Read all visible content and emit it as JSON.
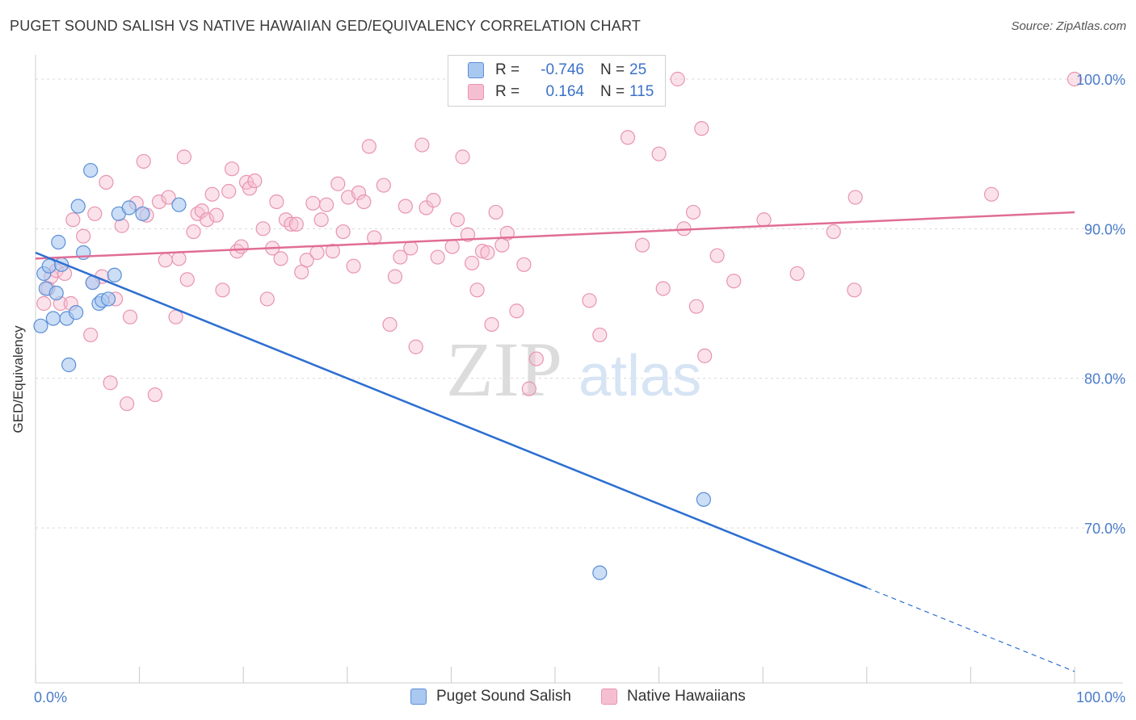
{
  "header": {
    "title": "PUGET SOUND SALISH VS NATIVE HAWAIIAN GED/EQUIVALENCY CORRELATION CHART",
    "source": "Source: ZipAtlas.com"
  },
  "watermark": {
    "zip": "ZIP",
    "atlas": "atlas"
  },
  "legend": {
    "rows": [
      {
        "r_label": "R =",
        "r_value": "-0.746",
        "n_label": "N =",
        "n_value": "25"
      },
      {
        "r_label": "R =",
        "r_value": "0.164",
        "n_label": "N =",
        "n_value": "115"
      }
    ]
  },
  "bottom_legend": {
    "series1": "Puget Sound Salish",
    "series2": "Native Hawaiians"
  },
  "chart_data": {
    "type": "scatter",
    "title": "PUGET SOUND SALISH VS NATIVE HAWAIIAN GED/EQUIVALENCY CORRELATION CHART",
    "xlabel": "",
    "ylabel": "GED/Equivalency",
    "xlim": [
      0,
      100
    ],
    "ylim": [
      60,
      103
    ],
    "x_tick_labels": [
      "0.0%",
      "100.0%"
    ],
    "y_ticks": [
      {
        "value": 100,
        "label": "100.0%"
      },
      {
        "value": 90,
        "label": "90.0%"
      },
      {
        "value": 80,
        "label": "80.0%"
      },
      {
        "value": 70,
        "label": "70.0%"
      }
    ],
    "colors": {
      "blue_fill": "#a9c8f0",
      "blue_stroke": "#5b8fd6",
      "blue_line": "#2d6fd0",
      "pink_fill": "#f6bfd1",
      "pink_stroke": "#e894b1",
      "pink_line": "#e06d96",
      "axis_text": "#4a7cc9",
      "grid": "#d8d8d8"
    },
    "series": [
      {
        "name": "Puget Sound Salish",
        "r": -0.746,
        "n": 25,
        "trend": {
          "x0": 0,
          "y0": 88.4,
          "x1": 80,
          "y1": 66.0,
          "dash_to_x": 100,
          "dash_to_y": 60.4
        },
        "points": [
          [
            0.5,
            83.5
          ],
          [
            0.8,
            87.0
          ],
          [
            1.0,
            86.0
          ],
          [
            1.3,
            87.5
          ],
          [
            1.7,
            84.0
          ],
          [
            2.0,
            85.7
          ],
          [
            2.2,
            89.1
          ],
          [
            2.5,
            87.6
          ],
          [
            3.0,
            84.0
          ],
          [
            3.2,
            80.9
          ],
          [
            3.9,
            84.4
          ],
          [
            4.1,
            91.5
          ],
          [
            4.6,
            88.4
          ],
          [
            5.3,
            93.9
          ],
          [
            5.5,
            86.4
          ],
          [
            6.1,
            85.0
          ],
          [
            6.4,
            85.2
          ],
          [
            7.0,
            85.3
          ],
          [
            7.6,
            86.9
          ],
          [
            8.0,
            91.0
          ],
          [
            9.0,
            91.4
          ],
          [
            10.3,
            91.0
          ],
          [
            13.8,
            91.6
          ],
          [
            54.3,
            67.0
          ],
          [
            64.3,
            71.9
          ]
        ]
      },
      {
        "name": "Native Hawaiians",
        "r": 0.164,
        "n": 115,
        "trend": {
          "x0": 0,
          "y0": 88.0,
          "x1": 100,
          "y1": 91.1
        },
        "points": [
          [
            0.8,
            85.0
          ],
          [
            1.2,
            86.0
          ],
          [
            1.5,
            86.8
          ],
          [
            2.0,
            87.2
          ],
          [
            2.4,
            85.0
          ],
          [
            2.8,
            87.0
          ],
          [
            3.4,
            85.0
          ],
          [
            3.6,
            90.6
          ],
          [
            4.6,
            89.5
          ],
          [
            5.3,
            82.9
          ],
          [
            5.5,
            86.4
          ],
          [
            5.7,
            91.0
          ],
          [
            6.4,
            86.8
          ],
          [
            6.8,
            93.1
          ],
          [
            7.2,
            79.7
          ],
          [
            7.7,
            85.3
          ],
          [
            8.3,
            90.2
          ],
          [
            8.8,
            78.3
          ],
          [
            9.1,
            84.1
          ],
          [
            9.7,
            91.7
          ],
          [
            10.4,
            94.5
          ],
          [
            10.7,
            90.9
          ],
          [
            11.5,
            78.9
          ],
          [
            11.9,
            91.8
          ],
          [
            12.5,
            87.9
          ],
          [
            12.8,
            92.1
          ],
          [
            13.5,
            84.1
          ],
          [
            13.8,
            88.0
          ],
          [
            14.3,
            94.8
          ],
          [
            14.6,
            86.6
          ],
          [
            15.2,
            89.8
          ],
          [
            15.6,
            91.0
          ],
          [
            16.0,
            91.2
          ],
          [
            16.5,
            90.6
          ],
          [
            17.0,
            92.3
          ],
          [
            17.4,
            90.9
          ],
          [
            18.0,
            85.9
          ],
          [
            18.6,
            92.5
          ],
          [
            18.9,
            94.0
          ],
          [
            19.4,
            88.5
          ],
          [
            19.8,
            88.8
          ],
          [
            20.3,
            93.1
          ],
          [
            20.6,
            92.7
          ],
          [
            21.1,
            93.2
          ],
          [
            21.9,
            90.0
          ],
          [
            22.3,
            85.3
          ],
          [
            22.8,
            88.7
          ],
          [
            23.2,
            91.8
          ],
          [
            23.6,
            88.0
          ],
          [
            24.1,
            90.6
          ],
          [
            24.6,
            90.3
          ],
          [
            25.1,
            90.3
          ],
          [
            25.6,
            87.1
          ],
          [
            26.1,
            87.9
          ],
          [
            26.7,
            91.7
          ],
          [
            27.1,
            88.4
          ],
          [
            27.5,
            90.6
          ],
          [
            28.0,
            91.6
          ],
          [
            28.6,
            88.5
          ],
          [
            29.1,
            93.0
          ],
          [
            29.6,
            89.8
          ],
          [
            30.1,
            92.1
          ],
          [
            30.6,
            87.5
          ],
          [
            31.1,
            92.4
          ],
          [
            31.6,
            91.8
          ],
          [
            32.1,
            95.5
          ],
          [
            32.6,
            89.4
          ],
          [
            33.5,
            92.9
          ],
          [
            34.1,
            83.6
          ],
          [
            34.6,
            86.8
          ],
          [
            35.1,
            88.1
          ],
          [
            35.6,
            91.5
          ],
          [
            36.1,
            88.7
          ],
          [
            36.6,
            82.1
          ],
          [
            37.2,
            95.6
          ],
          [
            37.6,
            91.4
          ],
          [
            38.3,
            91.9
          ],
          [
            38.7,
            88.1
          ],
          [
            40.1,
            88.8
          ],
          [
            40.6,
            90.6
          ],
          [
            41.1,
            94.8
          ],
          [
            41.6,
            89.6
          ],
          [
            42.0,
            87.7
          ],
          [
            42.5,
            85.9
          ],
          [
            43.0,
            88.5
          ],
          [
            43.5,
            88.4
          ],
          [
            43.9,
            83.6
          ],
          [
            44.3,
            91.1
          ],
          [
            44.9,
            88.9
          ],
          [
            45.4,
            89.7
          ],
          [
            46.3,
            84.5
          ],
          [
            47.0,
            87.6
          ],
          [
            47.5,
            79.3
          ],
          [
            48.2,
            81.3
          ],
          [
            53.3,
            85.2
          ],
          [
            54.3,
            82.9
          ],
          [
            57.0,
            96.1
          ],
          [
            58.4,
            88.9
          ],
          [
            60.0,
            95.0
          ],
          [
            60.4,
            86.0
          ],
          [
            61.8,
            100.0
          ],
          [
            62.4,
            90.0
          ],
          [
            63.3,
            91.1
          ],
          [
            63.6,
            84.8
          ],
          [
            64.1,
            96.7
          ],
          [
            64.4,
            81.5
          ],
          [
            65.6,
            88.2
          ],
          [
            67.2,
            86.5
          ],
          [
            70.1,
            90.6
          ],
          [
            73.3,
            87.0
          ],
          [
            76.8,
            89.8
          ],
          [
            78.8,
            85.9
          ],
          [
            78.9,
            92.1
          ],
          [
            92.0,
            92.3
          ],
          [
            100.0,
            100.0
          ]
        ]
      }
    ]
  }
}
